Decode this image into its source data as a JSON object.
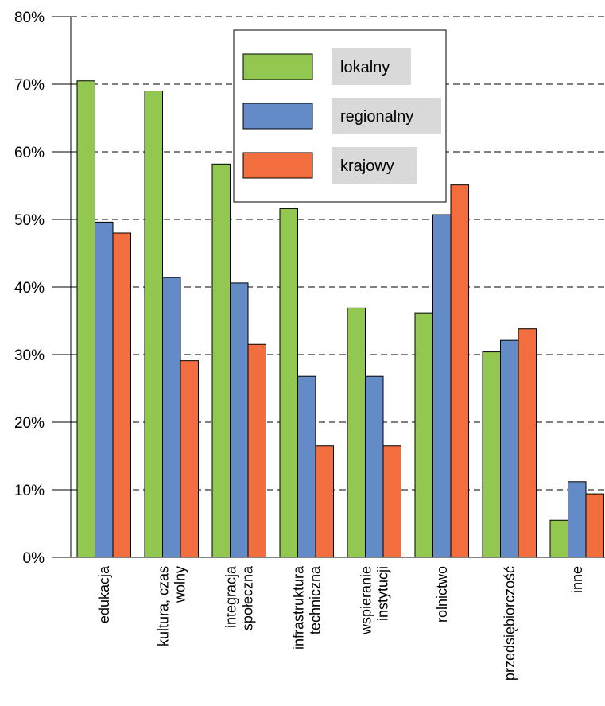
{
  "chart_data": {
    "type": "bar",
    "categories": [
      [
        "edukacja"
      ],
      [
        "kultura, czas",
        "wolny"
      ],
      [
        "integracja",
        "społeczna"
      ],
      [
        "infrastruktura",
        "techniczna"
      ],
      [
        "wspieranie",
        "instytucji"
      ],
      [
        "rolnictwo"
      ],
      [
        "przedsiębiorczość"
      ],
      [
        "inne"
      ]
    ],
    "series": [
      {
        "name": "lokalny",
        "color": "#92c850",
        "values": [
          70.5,
          69.0,
          58.2,
          51.6,
          36.9,
          36.1,
          30.4,
          5.5
        ]
      },
      {
        "name": "regionalny",
        "color": "#628bc8",
        "values": [
          49.6,
          41.4,
          40.6,
          26.8,
          26.8,
          50.7,
          32.1,
          11.2
        ]
      },
      {
        "name": "krajowy",
        "color": "#f26e3f",
        "values": [
          48.0,
          29.1,
          31.5,
          16.5,
          16.5,
          55.1,
          33.8,
          9.4
        ]
      }
    ],
    "yticks": [
      "0%",
      "10%",
      "20%",
      "30%",
      "40%",
      "50%",
      "60%",
      "70%",
      "80%"
    ],
    "ylim": [
      0,
      80
    ],
    "grid": true,
    "legend_position": "top-center"
  }
}
